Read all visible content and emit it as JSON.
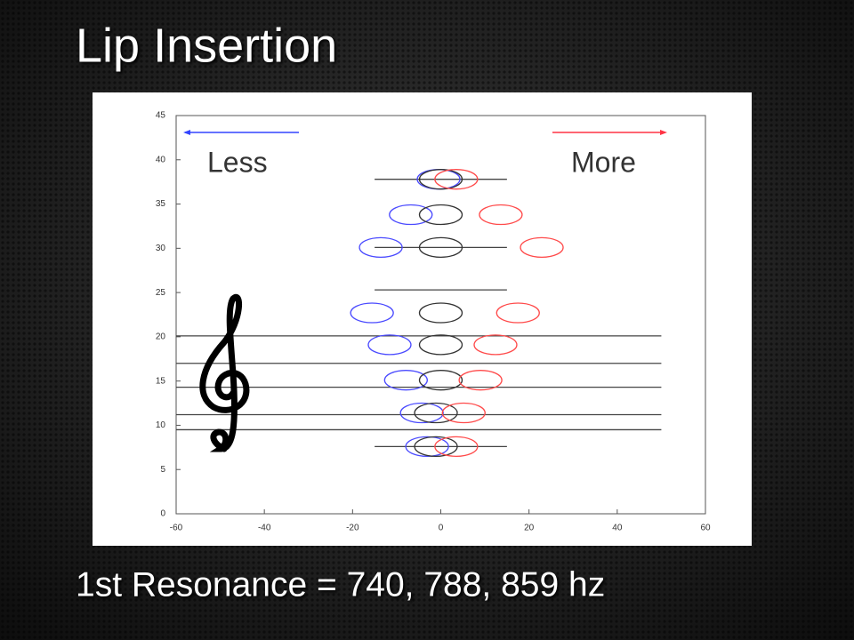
{
  "title": "Lip Insertion",
  "footer": "1st Resonance = 740, 788, 859 hz",
  "chart_data": {
    "type": "scatter",
    "annotations": [
      "Less",
      "More"
    ],
    "xlim": [
      -60,
      60
    ],
    "xticks": [
      -60,
      -40,
      -20,
      0,
      20,
      40,
      60
    ],
    "ylim": [
      0,
      45
    ],
    "yticks": [
      0,
      5,
      10,
      15,
      20,
      25,
      30,
      35,
      40,
      45
    ],
    "series": [
      {
        "color": "#4a4aff",
        "x": [
          -0.5,
          -6.8,
          -13.6,
          -15.6,
          -11.6,
          -7.9,
          -4.3,
          -3.1
        ],
        "values": [
          37.8,
          33.8,
          30.1,
          22.7,
          19.1,
          15.1,
          11.4,
          7.6
        ]
      },
      {
        "color": "#333333",
        "x": [
          0,
          0,
          0,
          0,
          0,
          0,
          -1.1,
          -1.1
        ],
        "values": [
          37.8,
          33.8,
          30.1,
          22.7,
          19.1,
          15.1,
          11.4,
          7.6
        ]
      },
      {
        "color": "#ff4a4a",
        "x": [
          3.5,
          13.6,
          22.9,
          17.5,
          12.4,
          9,
          5.2,
          3.5
        ],
        "values": [
          37.8,
          33.8,
          30.1,
          22.7,
          19.1,
          15.1,
          11.4,
          7.6
        ]
      }
    ],
    "lines": [
      {
        "x": [
          -60,
          50
        ],
        "y": 9.5
      },
      {
        "x": [
          -60,
          50
        ],
        "y": 11.2
      },
      {
        "x": [
          -60,
          50
        ],
        "y": 14.3
      },
      {
        "x": [
          -60,
          50
        ],
        "y": 17
      },
      {
        "x": [
          -60,
          50
        ],
        "y": 20.1
      },
      {
        "x": [
          -15,
          15
        ],
        "y": 7.6
      },
      {
        "x": [
          -15,
          15
        ],
        "y": 25.3
      },
      {
        "x": [
          -15,
          15
        ],
        "y": 30.1
      },
      {
        "x": [
          -15,
          15
        ],
        "y": 37.8
      }
    ]
  }
}
